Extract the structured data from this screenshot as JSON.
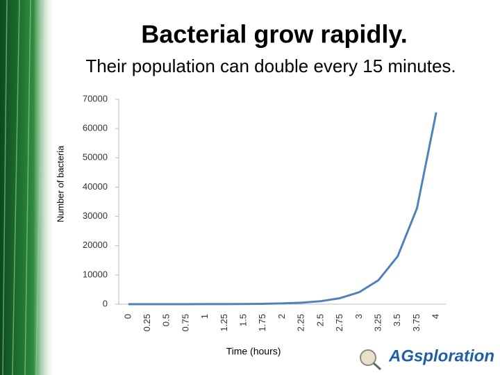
{
  "chart_data": {
    "type": "line",
    "title": "Bacterial grow rapidly.",
    "subtitle": "Their population can double every 15 minutes.",
    "x_label": "Time (hours)",
    "y_label": "Number of bacteria",
    "categories": [
      "0",
      "0.25",
      "0.5",
      "0.75",
      "1",
      "1.25",
      "1.5",
      "1.75",
      "2",
      "2.25",
      "2.5",
      "2.75",
      "3",
      "3.25",
      "3.5",
      "3.75",
      "4"
    ],
    "series": [
      {
        "name": "Number of bacteria",
        "color": "#4f81bd",
        "values": [
          1,
          2,
          4,
          8,
          16,
          32,
          64,
          128,
          256,
          512,
          1024,
          2048,
          4096,
          8192,
          16384,
          32768,
          65536
        ]
      }
    ],
    "ylim": [
      0,
      70000
    ],
    "yticks": [
      0,
      10000,
      20000,
      30000,
      40000,
      50000,
      60000,
      70000
    ],
    "grid": false
  },
  "logo": "AGsploration"
}
